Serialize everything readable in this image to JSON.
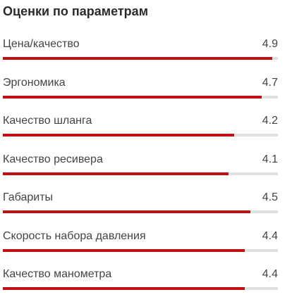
{
  "title": "Оценки по параметрам",
  "scale_max": 5,
  "colors": {
    "bar_fill": "#c10f14",
    "bar_track": "#e0e0e0"
  },
  "ratings": [
    {
      "label": "Цена/качество",
      "value": "4.9"
    },
    {
      "label": "Эргономика",
      "value": "4.7"
    },
    {
      "label": "Качество шланга",
      "value": "4.2"
    },
    {
      "label": "Качество ресивера",
      "value": "4.1"
    },
    {
      "label": "Габариты",
      "value": "4.5"
    },
    {
      "label": "Скорость набора давления",
      "value": "4.4"
    },
    {
      "label": "Качество манометра",
      "value": "4.4"
    }
  ]
}
